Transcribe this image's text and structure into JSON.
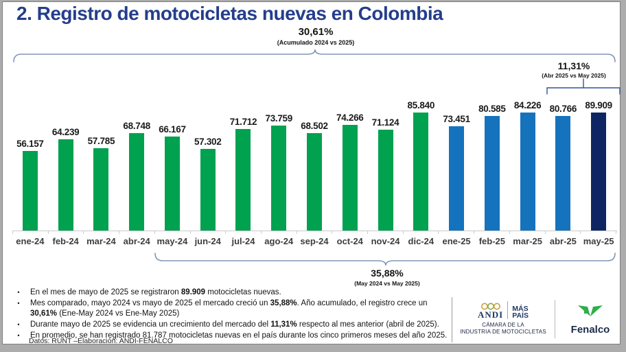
{
  "title": "2. Registro de motocicletas nuevas en Colombia",
  "chart_data": {
    "type": "bar",
    "title": "Registro de motocicletas nuevas en Colombia",
    "categories": [
      "ene-24",
      "feb-24",
      "mar-24",
      "abr-24",
      "may-24",
      "jun-24",
      "jul-24",
      "ago-24",
      "sep-24",
      "oct-24",
      "nov-24",
      "dic-24",
      "ene-25",
      "feb-25",
      "mar-25",
      "abr-25",
      "may-25"
    ],
    "values": [
      56157,
      64239,
      57785,
      68748,
      66167,
      57302,
      71712,
      73759,
      68502,
      74266,
      71124,
      85840,
      73451,
      80585,
      84226,
      80766,
      89909
    ],
    "value_labels": [
      "56.157",
      "64.239",
      "57.785",
      "68.748",
      "66.167",
      "57.302",
      "71.712",
      "73.759",
      "68.502",
      "74.266",
      "71.124",
      "85.840",
      "73.451",
      "80.585",
      "84.226",
      "80.766",
      "89.909"
    ],
    "groups": [
      "y2024",
      "y2024",
      "y2024",
      "y2024",
      "y2024",
      "y2024",
      "y2024",
      "y2024",
      "y2024",
      "y2024",
      "y2024",
      "y2024",
      "y2025",
      "y2025",
      "y2025",
      "y2025",
      "highlight"
    ],
    "colors": {
      "y2024": "#00a14f",
      "y2025": "#1573bd",
      "highlight": "#0e2563"
    },
    "xlabel": "",
    "ylabel": "",
    "ylim": [
      0,
      95000
    ],
    "grid": false,
    "legend": null,
    "annotations": {
      "top": {
        "value": "30,61%",
        "caption": "(Acumulado 2024 vs 2025)",
        "spans": "ene-24 a may-25"
      },
      "right": {
        "value": "11,31%",
        "caption": "(Abr 2025 vs May 2025)",
        "spans": "abr-25 a may-25"
      },
      "bottom": {
        "value": "35,88%",
        "caption": "(May 2024 vs May 2025)",
        "spans": "may-24 a may-25"
      }
    }
  },
  "bullets": [
    {
      "segments": [
        {
          "t": "En el mes de mayo de 2025 se registraron ",
          "b": false
        },
        {
          "t": "89.909",
          "b": true
        },
        {
          "t": " motocicletas nuevas.",
          "b": false
        }
      ]
    },
    {
      "segments": [
        {
          "t": "Mes comparado, mayo 2024 vs mayo de 2025 el mercado creció un ",
          "b": false
        },
        {
          "t": "35,88%",
          "b": true
        },
        {
          "t": ". Año acumulado, el registro crece un ",
          "b": false
        },
        {
          "t": "30,61%",
          "b": true
        },
        {
          "t": " (Ene-May 2024 vs Ene-May 2025)",
          "b": false
        }
      ]
    },
    {
      "segments": [
        {
          "t": "Durante mayo de 2025 se evidencia un crecimiento del mercado del ",
          "b": false
        },
        {
          "t": "11,31%",
          "b": true
        },
        {
          "t": " respecto al mes anterior (abril de 2025).",
          "b": false
        }
      ]
    },
    {
      "segments": [
        {
          "t": "En promedio, se han registrado 81.787 motocicletas nuevas en el país durante los cinco primeros meses del año 2025.",
          "b": false
        }
      ]
    }
  ],
  "footer": {
    "source": "Datos: RUNT –Elaboración: ANDI-FENALCO"
  },
  "logos": {
    "andi": {
      "name": "ANDI",
      "more1": "MÁS",
      "more2": "PAÍS",
      "caption1": "CÁMARA DE LA",
      "caption2": "INDUSTRIA DE MOTOCICLETAS"
    },
    "fenalco": {
      "name": "Fenalco"
    }
  }
}
